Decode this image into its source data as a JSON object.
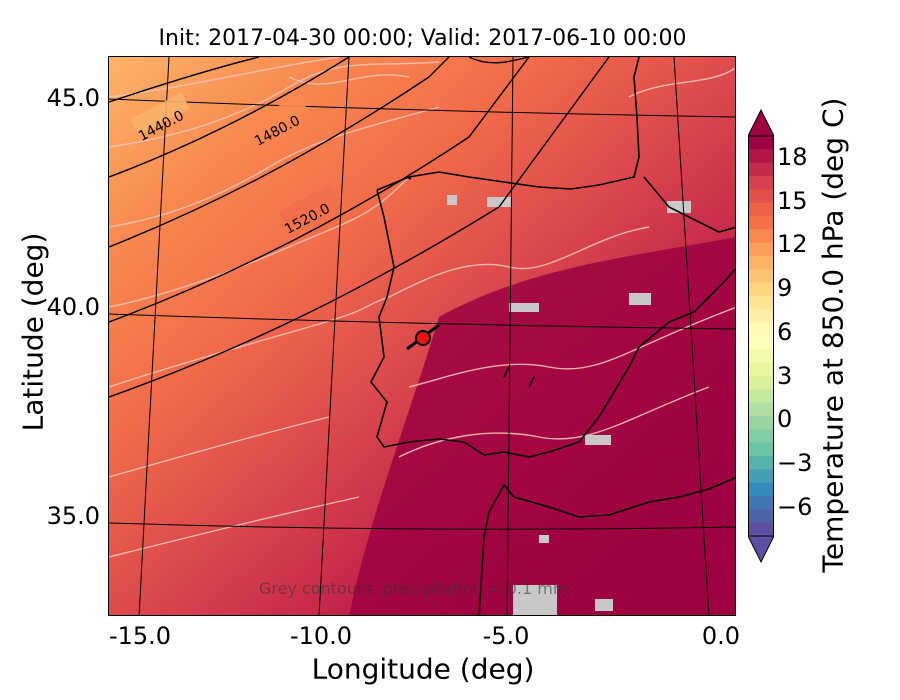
{
  "title": "Init: 2017-04-30 00:00; Valid: 2017-06-10 00:00",
  "axes": {
    "xlabel": "Longitude (deg)",
    "ylabel": "Latitude (deg)",
    "xticks": [
      "-15.0",
      "-10.0",
      "-5.0",
      "0.0"
    ],
    "yticks": [
      "45.0",
      "40.0",
      "35.0"
    ]
  },
  "geopotential_contours": [
    "1440.0",
    "1480.0",
    "1520.0"
  ],
  "annotation": "Grey contours: precipitation > 0.1 mm",
  "marker": {
    "lon": -7.5,
    "lat": 39.3,
    "color": "#ee1111"
  },
  "colorbar": {
    "label": "Temperature at 850.0 hPa (deg C)",
    "ticks": [
      "18",
      "15",
      "12",
      "9",
      "6",
      "3",
      "0",
      "−3",
      "−6"
    ],
    "colors": [
      "#9e0142",
      "#d53e4f",
      "#f46d43",
      "#fdae61",
      "#fee08b",
      "#ffffbf",
      "#e6f598",
      "#abdda4",
      "#66c2a5",
      "#3288bd",
      "#5e4fa2"
    ]
  }
}
